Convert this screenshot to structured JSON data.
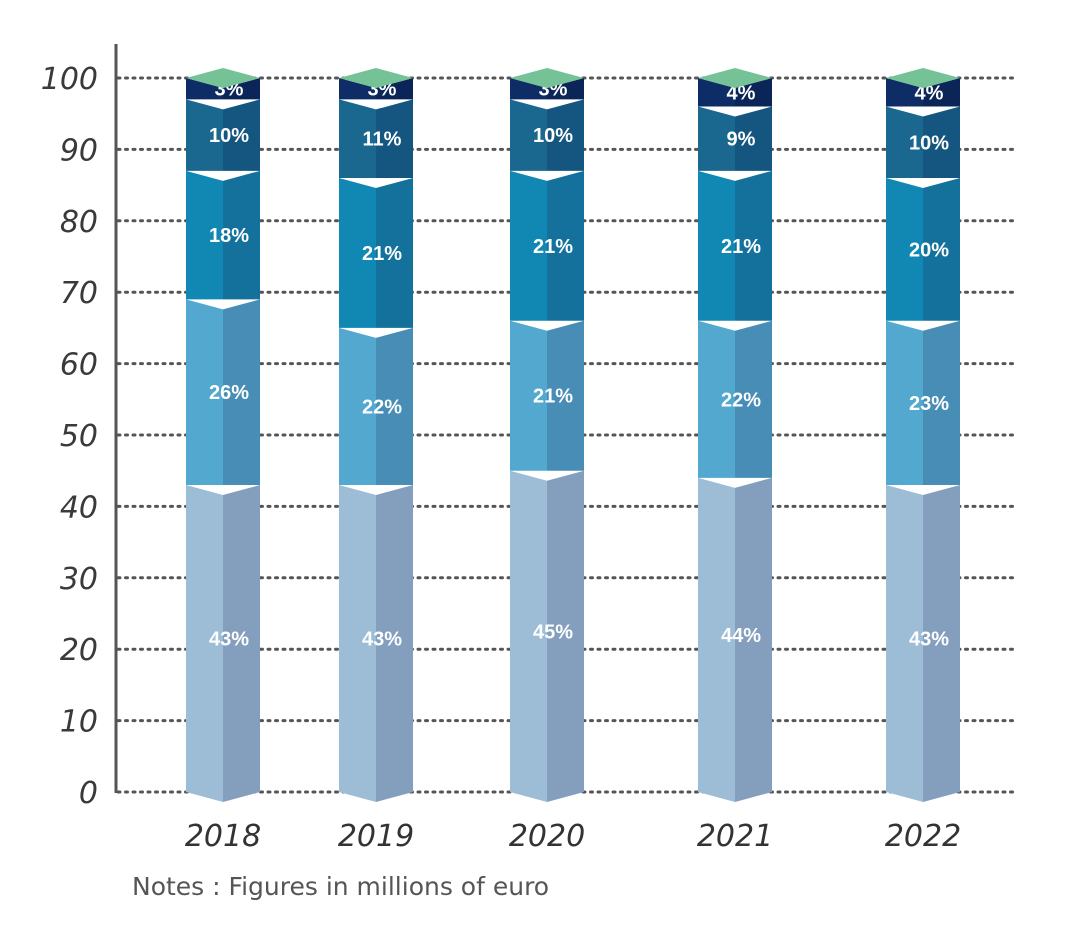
{
  "notes": "Notes : Figures in millions of euro",
  "chart_data": {
    "type": "bar",
    "stacked": true,
    "categories": [
      "2018",
      "2019",
      "2020",
      "2021",
      "2022"
    ],
    "series": [
      {
        "values": [
          43,
          43,
          45,
          44,
          43
        ],
        "labels": [
          "43%",
          "43%",
          "45%",
          "44%",
          "43%"
        ],
        "color": "#9dbdd6",
        "side_color": "#849fbe"
      },
      {
        "values": [
          26,
          22,
          21,
          22,
          23
        ],
        "labels": [
          "26%",
          "22%",
          "21%",
          "22%",
          "23%"
        ],
        "color": "#52a8cf",
        "side_color": "#478db6"
      },
      {
        "values": [
          18,
          21,
          21,
          21,
          20
        ],
        "labels": [
          "18%",
          "21%",
          "21%",
          "21%",
          "20%"
        ],
        "color": "#1187b4",
        "side_color": "#13719c"
      },
      {
        "values": [
          10,
          11,
          10,
          9,
          10
        ],
        "labels": [
          "10%",
          "11%",
          "10%",
          "9%",
          "10%"
        ],
        "color": "#1a6890",
        "side_color": "#155680"
      },
      {
        "values": [
          3,
          3,
          3,
          4,
          4
        ],
        "labels": [
          "3%",
          "3%",
          "3%",
          "4%",
          "4%"
        ],
        "color": "#0e2d66",
        "side_color": "#0b2558"
      }
    ],
    "top_color": "#74c295",
    "ylim": [
      0,
      100
    ],
    "yticks": [
      0,
      10,
      20,
      30,
      40,
      50,
      60,
      70,
      80,
      90,
      100
    ],
    "grid": true,
    "grid_style": "dotted"
  }
}
